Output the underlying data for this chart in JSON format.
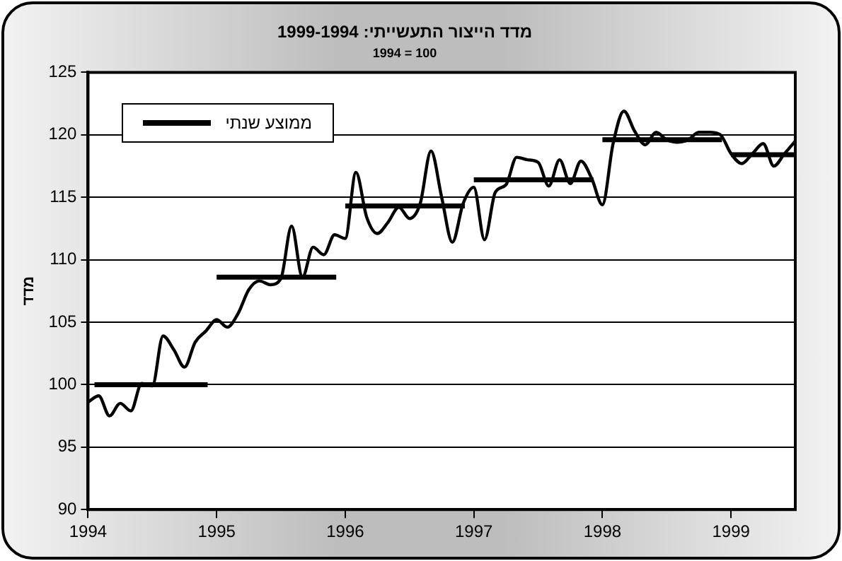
{
  "chart_data": {
    "type": "line",
    "title": "מדד הייצור התעשייתי: 1999-1994",
    "subtitle": "1994 = 100",
    "ylabel": "מדד",
    "xlim": [
      1994,
      1999.5
    ],
    "xticks": [
      1994,
      1995,
      1996,
      1997,
      1998,
      1999
    ],
    "ylim": [
      90,
      125
    ],
    "yticks": [
      90,
      95,
      100,
      105,
      110,
      115,
      120,
      125
    ],
    "grid": "y",
    "legend": "top left",
    "marker": "none",
    "line_style": "solid",
    "x": [
      1994,
      1994.083,
      1994.167,
      1994.25,
      1994.333,
      1994.417,
      1994.5,
      1994.583,
      1994.667,
      1994.75,
      1994.833,
      1994.917,
      1995,
      1995.083,
      1995.167,
      1995.25,
      1995.333,
      1995.417,
      1995.5,
      1995.583,
      1995.667,
      1995.75,
      1995.833,
      1995.917,
      1996,
      1996.083,
      1996.167,
      1996.25,
      1996.333,
      1996.417,
      1996.5,
      1996.583,
      1996.667,
      1996.75,
      1996.833,
      1996.917,
      1997,
      1997.083,
      1997.167,
      1997.25,
      1997.333,
      1997.417,
      1997.5,
      1997.583,
      1997.667,
      1997.75,
      1997.833,
      1997.917,
      1998,
      1998.083,
      1998.167,
      1998.25,
      1998.333,
      1998.417,
      1998.5,
      1998.583,
      1998.667,
      1998.75,
      1998.833,
      1998.917,
      1999,
      1999.083,
      1999.167,
      1999.25,
      1999.333,
      1999.417,
      1999.5
    ],
    "series": [
      {
        "color": "#000000",
        "values": [
          98.6,
          99.1,
          97.5,
          98.5,
          97.9,
          100.1,
          99.9,
          103.9,
          102.8,
          101.4,
          103.4,
          104.3,
          105.2,
          104.6,
          105.7,
          107.6,
          108.3,
          108.0,
          108.5,
          112.7,
          108.6,
          111.0,
          110.4,
          112.0,
          111.7,
          117.0,
          113.4,
          112.1,
          113.0,
          114.2,
          113.3,
          114.5,
          118.7,
          115.0,
          111.4,
          114.5,
          115.8,
          111.6,
          115.4,
          116.0,
          118.2,
          118.0,
          117.8,
          115.9,
          118.0,
          116.1,
          117.9,
          116.5,
          114.4,
          119.3,
          121.9,
          120.3,
          119.2,
          120.2,
          119.6,
          119.4,
          119.6,
          120.2,
          120.2,
          120.0,
          118.5,
          117.7,
          118.5,
          119.3,
          117.5,
          118.5,
          119.5
        ]
      },
      {
        "name": "ממוצע שנתי",
        "color": "#000000",
        "x": [
          1994.05,
          1994.93,
          1994.96,
          1995,
          1995.93,
          1995.96,
          1996,
          1996.93,
          1996.96,
          1997,
          1997.93,
          1997.96,
          1998,
          1998.93,
          1998.96,
          1999,
          1999.5
        ],
        "values": [
          100.0,
          100.0,
          null,
          108.6,
          108.6,
          null,
          114.3,
          114.3,
          null,
          116.4,
          116.4,
          null,
          119.6,
          119.6,
          null,
          118.4,
          118.4
        ]
      }
    ]
  }
}
